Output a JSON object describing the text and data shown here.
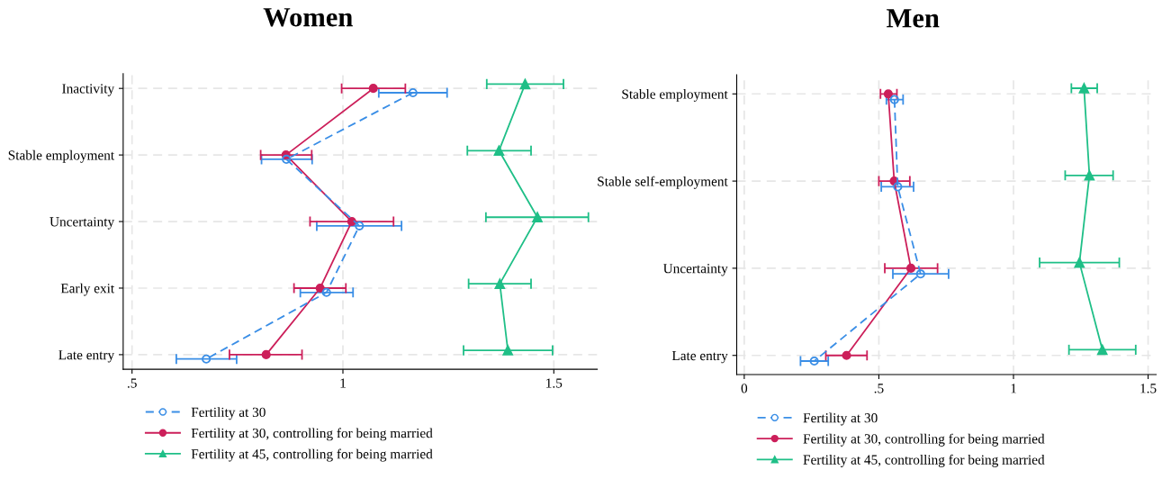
{
  "chart_data": [
    {
      "type": "line",
      "orientation": "horizontal",
      "title": "Women",
      "categories": [
        "Inactivity",
        "Stable employment",
        "Uncertainty",
        "Early exit",
        "Late entry"
      ],
      "xlim": [
        0.479,
        1.603
      ],
      "xticks": [
        {
          "value": 0.5,
          "label": ".5"
        },
        1,
        1.5
      ],
      "grid": true,
      "legend": "bottom left",
      "series": [
        {
          "name": "Fertility at 30",
          "color": "#3a8ee6",
          "marker": "circle",
          "line_style": "dashed",
          "values": [
            1.166,
            0.866,
            1.039,
            0.961,
            0.676
          ],
          "errors": [
            [
              1.085,
              1.247
            ],
            [
              0.807,
              0.927
            ],
            [
              0.938,
              1.139
            ],
            [
              0.899,
              1.024
            ],
            [
              0.605,
              0.748
            ]
          ]
        },
        {
          "name": "Fertility at 30, controlling for being married",
          "color": "#cc1f5a",
          "marker": "circle",
          "line_style": "solid",
          "values": [
            1.072,
            0.865,
            1.021,
            0.946,
            0.818
          ],
          "errors": [
            [
              0.997,
              1.148
            ],
            [
              0.805,
              0.926
            ],
            [
              0.922,
              1.12
            ],
            [
              0.884,
              1.007
            ],
            [
              0.731,
              0.903
            ]
          ]
        },
        {
          "name": "Fertility at 45, controlling for being married",
          "color": "#1fbf87",
          "marker": "triangle",
          "line_style": "solid",
          "values": [
            1.432,
            1.37,
            1.461,
            1.372,
            1.391
          ],
          "errors": [
            [
              1.341,
              1.523
            ],
            [
              1.295,
              1.446
            ],
            [
              1.339,
              1.582
            ],
            [
              1.298,
              1.446
            ],
            [
              1.286,
              1.497
            ]
          ]
        }
      ]
    },
    {
      "type": "line",
      "orientation": "horizontal",
      "title": "Men",
      "categories": [
        "Stable employment",
        "Stable self-employment",
        "Uncertainty",
        "Late entry"
      ],
      "xlim": [
        -0.028,
        1.53
      ],
      "xticks": [
        0,
        {
          "value": 0.5,
          "label": ".5"
        },
        1,
        1.5
      ],
      "grid": true,
      "legend": "bottom left",
      "series": [
        {
          "name": "Fertility at 30",
          "color": "#3a8ee6",
          "marker": "circle",
          "line_style": "dashed",
          "values": [
            0.558,
            0.57,
            0.655,
            0.26
          ],
          "errors": [
            [
              0.528,
              0.59
            ],
            [
              0.509,
              0.629
            ],
            [
              0.552,
              0.759
            ],
            [
              0.209,
              0.312
            ]
          ]
        },
        {
          "name": "Fertility at 30, controlling for being married",
          "color": "#cc1f5a",
          "marker": "circle",
          "line_style": "solid",
          "values": [
            0.535,
            0.557,
            0.619,
            0.38
          ],
          "errors": [
            [
              0.506,
              0.567
            ],
            [
              0.5,
              0.615
            ],
            [
              0.522,
              0.718
            ],
            [
              0.303,
              0.456
            ]
          ]
        },
        {
          "name": "Fertility at 45, controlling for being married",
          "color": "#1fbf87",
          "marker": "triangle",
          "line_style": "solid",
          "values": [
            1.262,
            1.282,
            1.245,
            1.33
          ],
          "errors": [
            [
              1.215,
              1.311
            ],
            [
              1.192,
              1.37
            ],
            [
              1.097,
              1.393
            ],
            [
              1.206,
              1.454
            ]
          ]
        }
      ]
    }
  ]
}
